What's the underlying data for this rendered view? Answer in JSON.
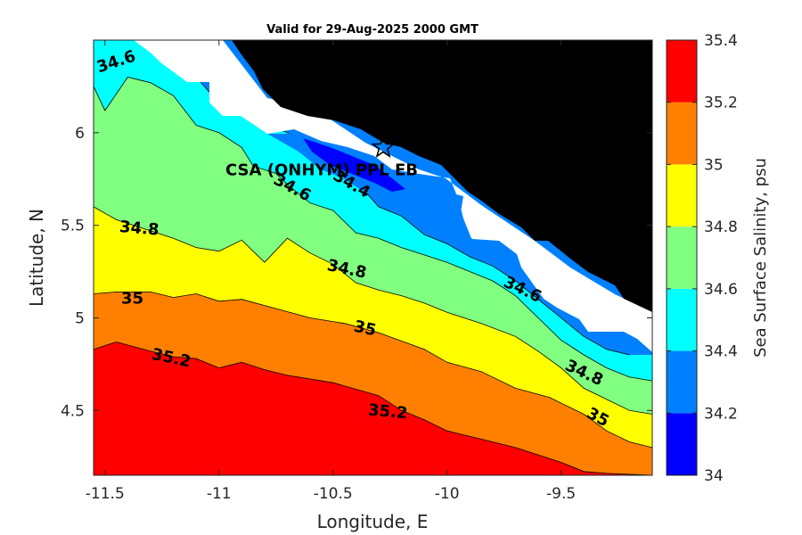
{
  "chart_data": {
    "type": "filled-contour",
    "title": "Valid for 29-Aug-2025 2000 GMT",
    "xlabel": "Longitude, E",
    "ylabel": "Latitude, N",
    "xlim": [
      -11.55,
      -9.1
    ],
    "ylim": [
      4.15,
      6.5
    ],
    "xticks": [
      -11.5,
      -11,
      -10.5,
      -10,
      -9.5
    ],
    "xtick_labels": [
      "-11.5",
      "-11",
      "-10.5",
      "-10",
      "-9.5"
    ],
    "yticks": [
      4.5,
      5,
      5.5,
      6
    ],
    "ytick_labels": [
      "4.5",
      "5",
      "5.5",
      "6"
    ],
    "colorbar": {
      "label": "Sea Surface Salinity, psu",
      "levels": [
        34,
        34.2,
        34.4,
        34.6,
        34.8,
        35,
        35.2,
        35.4
      ],
      "tick_labels": [
        "34",
        "34.2",
        "34.4",
        "34.6",
        "34.8",
        "35",
        "35.2",
        "35.4"
      ],
      "colors": [
        "#0000ff",
        "#0080ff",
        "#00ffff",
        "#80ff80",
        "#ffff00",
        "#ff8000",
        "#ff0000"
      ]
    },
    "contour_lines": [
      {
        "level": 35.2,
        "points": [
          [
            -11.55,
            4.83
          ],
          [
            -11.45,
            4.87
          ],
          [
            -11.3,
            4.82
          ],
          [
            -11.2,
            4.79
          ],
          [
            -11.1,
            4.78
          ],
          [
            -11.0,
            4.73
          ],
          [
            -10.9,
            4.76
          ],
          [
            -10.8,
            4.72
          ],
          [
            -10.7,
            4.69
          ],
          [
            -10.5,
            4.65
          ],
          [
            -10.3,
            4.58
          ],
          [
            -10.2,
            4.5
          ],
          [
            -10.1,
            4.45
          ],
          [
            -10.0,
            4.39
          ],
          [
            -9.9,
            4.36
          ],
          [
            -9.7,
            4.3
          ],
          [
            -9.5,
            4.22
          ],
          [
            -9.4,
            4.17
          ],
          [
            -9.3,
            4.16
          ],
          [
            -9.1,
            4.15
          ]
        ]
      },
      {
        "level": 35.0,
        "points": [
          [
            -11.55,
            5.13
          ],
          [
            -11.45,
            5.14
          ],
          [
            -11.3,
            5.14
          ],
          [
            -11.2,
            5.11
          ],
          [
            -11.1,
            5.13
          ],
          [
            -11.0,
            5.09
          ],
          [
            -10.9,
            5.1
          ],
          [
            -10.75,
            5.05
          ],
          [
            -10.6,
            5.0
          ],
          [
            -10.45,
            4.97
          ],
          [
            -10.3,
            4.92
          ],
          [
            -10.1,
            4.83
          ],
          [
            -10.0,
            4.76
          ],
          [
            -9.85,
            4.71
          ],
          [
            -9.7,
            4.62
          ],
          [
            -9.55,
            4.57
          ],
          [
            -9.4,
            4.48
          ],
          [
            -9.3,
            4.39
          ],
          [
            -9.2,
            4.33
          ],
          [
            -9.1,
            4.3
          ]
        ]
      },
      {
        "level": 34.8,
        "points": [
          [
            -11.55,
            5.6
          ],
          [
            -11.45,
            5.53
          ],
          [
            -11.3,
            5.47
          ],
          [
            -11.2,
            5.43
          ],
          [
            -11.1,
            5.38
          ],
          [
            -11.0,
            5.36
          ],
          [
            -10.9,
            5.42
          ],
          [
            -10.8,
            5.3
          ],
          [
            -10.7,
            5.43
          ],
          [
            -10.6,
            5.35
          ],
          [
            -10.5,
            5.29
          ],
          [
            -10.4,
            5.19
          ],
          [
            -10.3,
            5.15
          ],
          [
            -10.2,
            5.12
          ],
          [
            -10.1,
            5.08
          ],
          [
            -10.0,
            5.03
          ],
          [
            -9.85,
            4.97
          ],
          [
            -9.7,
            4.9
          ],
          [
            -9.6,
            4.82
          ],
          [
            -9.5,
            4.73
          ],
          [
            -9.4,
            4.62
          ],
          [
            -9.3,
            4.56
          ],
          [
            -9.2,
            4.5
          ],
          [
            -9.1,
            4.48
          ]
        ]
      },
      {
        "level": 34.6,
        "points": [
          [
            -11.55,
            6.25
          ],
          [
            -11.5,
            6.12
          ],
          [
            -11.4,
            6.3
          ],
          [
            -11.3,
            6.27
          ],
          [
            -11.2,
            6.2
          ],
          [
            -11.1,
            6.04
          ],
          [
            -11.0,
            6.0
          ],
          [
            -10.9,
            5.92
          ],
          [
            -10.85,
            5.82
          ],
          [
            -10.75,
            5.78
          ],
          [
            -10.7,
            5.72
          ],
          [
            -10.6,
            5.62
          ],
          [
            -10.5,
            5.58
          ],
          [
            -10.4,
            5.46
          ],
          [
            -10.3,
            5.43
          ],
          [
            -10.2,
            5.38
          ],
          [
            -10.1,
            5.34
          ],
          [
            -10.0,
            5.3
          ],
          [
            -9.9,
            5.25
          ],
          [
            -9.8,
            5.2
          ],
          [
            -9.7,
            5.12
          ],
          [
            -9.6,
            5.0
          ],
          [
            -9.5,
            4.88
          ],
          [
            -9.4,
            4.8
          ],
          [
            -9.3,
            4.73
          ],
          [
            -9.2,
            4.68
          ],
          [
            -9.1,
            4.66
          ]
        ]
      },
      {
        "level": 34.4,
        "points": [
          [
            -11.3,
            6.45
          ],
          [
            -11.2,
            6.38
          ],
          [
            -11.1,
            6.3
          ],
          [
            -11.0,
            6.16
          ],
          [
            -10.9,
            6.12
          ],
          [
            -10.8,
            6.05
          ],
          [
            -10.7,
            6.0
          ],
          [
            -10.6,
            5.9
          ],
          [
            -10.5,
            5.8
          ],
          [
            -10.4,
            5.74
          ],
          [
            -10.3,
            5.6
          ],
          [
            -10.2,
            5.55
          ],
          [
            -10.1,
            5.45
          ],
          [
            -10.0,
            5.4
          ],
          [
            -9.9,
            5.33
          ],
          [
            -9.8,
            5.28
          ],
          [
            -9.7,
            5.2
          ],
          [
            -9.6,
            5.1
          ],
          [
            -9.5,
            5.0
          ],
          [
            -9.4,
            4.9
          ],
          [
            -9.3,
            4.83
          ],
          [
            -9.2,
            4.8
          ]
        ]
      }
    ],
    "contour_labels": [
      {
        "text": "34.6",
        "lon": -11.45,
        "lat": 6.38,
        "angle": -18
      },
      {
        "text": "34.6",
        "lon": -10.68,
        "lat": 5.7,
        "angle": 28
      },
      {
        "text": "34.4",
        "lon": -10.42,
        "lat": 5.72,
        "angle": 30
      },
      {
        "text": "34.6",
        "lon": -9.67,
        "lat": 5.15,
        "angle": 25
      },
      {
        "text": "34.8",
        "lon": -11.35,
        "lat": 5.48,
        "angle": 5
      },
      {
        "text": "34.8",
        "lon": -10.44,
        "lat": 5.26,
        "angle": 12
      },
      {
        "text": "34.8",
        "lon": -9.4,
        "lat": 4.7,
        "angle": 25
      },
      {
        "text": "35",
        "lon": -11.38,
        "lat": 5.1,
        "angle": 0
      },
      {
        "text": "35",
        "lon": -10.36,
        "lat": 4.94,
        "angle": 12
      },
      {
        "text": "35",
        "lon": -9.34,
        "lat": 4.46,
        "angle": 28
      },
      {
        "text": "35.2",
        "lon": -11.21,
        "lat": 4.78,
        "angle": 12
      },
      {
        "text": "35.2",
        "lon": -10.26,
        "lat": 4.49,
        "angle": 5
      }
    ],
    "site": {
      "name": "CSA (ONHYM) PPL EB",
      "lon": -10.28,
      "lat": 5.92
    }
  }
}
